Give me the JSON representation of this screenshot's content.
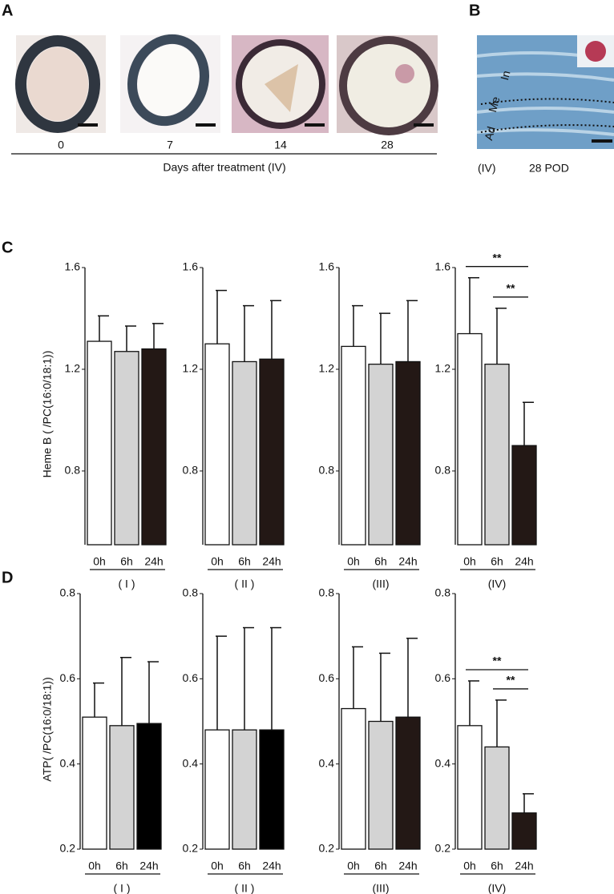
{
  "figure": {
    "panel_a": {
      "label": "A",
      "days": [
        "0",
        "7",
        "14",
        "28"
      ],
      "caption": "Days after treatment (IV)"
    },
    "panel_b": {
      "label": "B",
      "layers": [
        "In",
        "Me",
        "Ad"
      ],
      "group": "(IV)",
      "time": "28 POD"
    },
    "panel_c_label": "C",
    "panel_d_label": "D"
  },
  "chart_data": [
    {
      "type": "bar",
      "ylabel": "Heme B ( /PC(16:0/18:1))",
      "xlabel": "( I )",
      "categories": [
        "0h",
        "6h",
        "24h"
      ],
      "values": [
        1.31,
        1.27,
        1.28
      ],
      "errors": [
        0.1,
        0.1,
        0.1
      ],
      "colors": [
        "#ffffff",
        "#d3d3d3",
        "#231815"
      ],
      "ylim": [
        0.51,
        1.6
      ],
      "yticks": [
        0.8,
        1.2,
        1.6
      ]
    },
    {
      "type": "bar",
      "xlabel": "( II )",
      "categories": [
        "0h",
        "6h",
        "24h"
      ],
      "values": [
        1.3,
        1.23,
        1.24
      ],
      "errors": [
        0.21,
        0.22,
        0.23
      ],
      "colors": [
        "#ffffff",
        "#d3d3d3",
        "#231815"
      ],
      "ylim": [
        0.51,
        1.6
      ],
      "yticks": [
        0.8,
        1.2,
        1.6
      ]
    },
    {
      "type": "bar",
      "xlabel": "(III)",
      "categories": [
        "0h",
        "6h",
        "24h"
      ],
      "values": [
        1.29,
        1.22,
        1.23
      ],
      "errors": [
        0.16,
        0.2,
        0.24
      ],
      "colors": [
        "#ffffff",
        "#d3d3d3",
        "#231815"
      ],
      "ylim": [
        0.51,
        1.6
      ],
      "yticks": [
        0.8,
        1.2,
        1.6
      ]
    },
    {
      "type": "bar",
      "xlabel": "(IV)",
      "categories": [
        "0h",
        "6h",
        "24h"
      ],
      "values": [
        1.34,
        1.22,
        0.9
      ],
      "errors": [
        0.22,
        0.22,
        0.17
      ],
      "colors": [
        "#ffffff",
        "#d3d3d3",
        "#231815"
      ],
      "ylim": [
        0.51,
        1.6
      ],
      "yticks": [
        0.8,
        1.2,
        1.6
      ],
      "annotations": [
        {
          "text": "**",
          "between": [
            "0h",
            "24h"
          ]
        },
        {
          "text": "**",
          "between": [
            "6h",
            "24h"
          ]
        }
      ]
    },
    {
      "type": "bar",
      "ylabel": "ATP( /PC(16:0/18:1))",
      "xlabel": "( I )",
      "categories": [
        "0h",
        "6h",
        "24h"
      ],
      "values": [
        0.51,
        0.49,
        0.495
      ],
      "errors": [
        0.08,
        0.16,
        0.145
      ],
      "colors": [
        "#ffffff",
        "#d3d3d3",
        "#000000"
      ],
      "ylim": [
        0.2,
        0.8
      ],
      "yticks": [
        0.2,
        0.4,
        0.6,
        0.8
      ]
    },
    {
      "type": "bar",
      "xlabel": "( II )",
      "categories": [
        "0h",
        "6h",
        "24h"
      ],
      "values": [
        0.48,
        0.48,
        0.48
      ],
      "errors": [
        0.22,
        0.24,
        0.24
      ],
      "colors": [
        "#ffffff",
        "#d3d3d3",
        "#000000"
      ],
      "ylim": [
        0.2,
        0.8
      ],
      "yticks": [
        0.2,
        0.4,
        0.6,
        0.8
      ]
    },
    {
      "type": "bar",
      "xlabel": "(III)",
      "categories": [
        "0h",
        "6h",
        "24h"
      ],
      "values": [
        0.53,
        0.5,
        0.51
      ],
      "errors": [
        0.145,
        0.16,
        0.185
      ],
      "colors": [
        "#ffffff",
        "#d3d3d3",
        "#231815"
      ],
      "ylim": [
        0.2,
        0.8
      ],
      "yticks": [
        0.2,
        0.4,
        0.6,
        0.8
      ]
    },
    {
      "type": "bar",
      "xlabel": "(IV)",
      "categories": [
        "0h",
        "6h",
        "24h"
      ],
      "values": [
        0.49,
        0.44,
        0.285
      ],
      "errors": [
        0.105,
        0.11,
        0.045
      ],
      "colors": [
        "#ffffff",
        "#d3d3d3",
        "#231815"
      ],
      "ylim": [
        0.2,
        0.8
      ],
      "yticks": [
        0.2,
        0.4,
        0.6,
        0.8
      ],
      "annotations": [
        {
          "text": "**",
          "between": [
            "0h",
            "24h"
          ]
        },
        {
          "text": "**",
          "between": [
            "6h",
            "24h"
          ]
        }
      ]
    }
  ]
}
